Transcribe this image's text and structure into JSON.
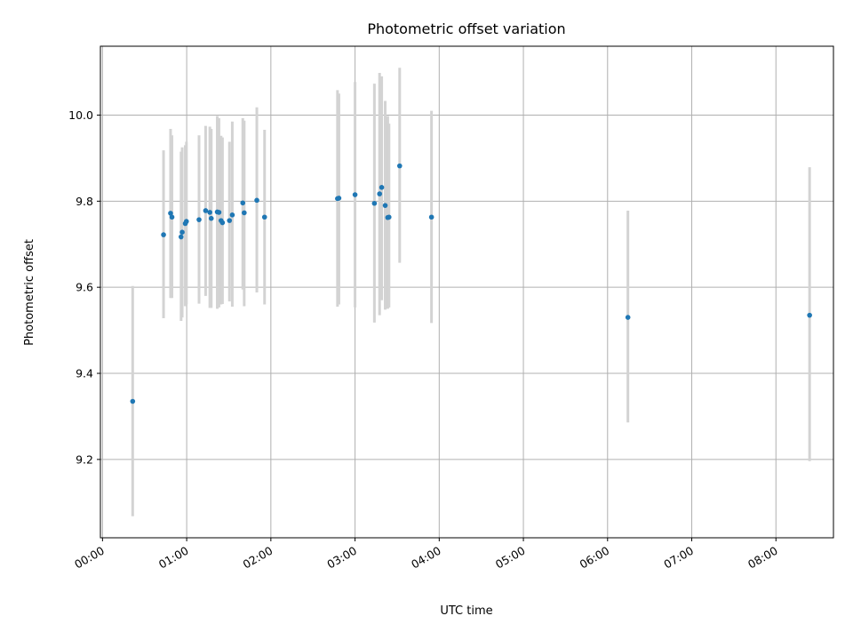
{
  "colors": {
    "point": "#1f77b4",
    "errorbar": "#d3d3d3",
    "grid": "#b0b0b0",
    "axis": "#000000"
  },
  "chart_data": {
    "type": "scatter",
    "title": "Photometric offset variation",
    "xlabel": "UTC time",
    "ylabel": "Photometric offset",
    "grid": true,
    "x_unit": "minutes since 00:00 UTC",
    "xlim": [
      -1.5,
      521
    ],
    "ylim": [
      9.018,
      10.16
    ],
    "xticks": [
      0,
      60,
      120,
      180,
      240,
      300,
      360,
      420,
      480
    ],
    "xtick_labels": [
      "00:00",
      "01:00",
      "02:00",
      "03:00",
      "04:00",
      "05:00",
      "06:00",
      "07:00",
      "08:00"
    ],
    "yticks": [
      9.2,
      9.4,
      9.6,
      9.8,
      10.0
    ],
    "ytick_labels": [
      "9.2",
      "9.4",
      "9.6",
      "9.8",
      "10.0"
    ],
    "series": [
      {
        "points": [
          {
            "x": 21.5,
            "y": 9.335,
            "lo": 9.068,
            "hi": 9.603
          },
          {
            "x": 43.5,
            "y": 9.722,
            "lo": 9.528,
            "hi": 9.918
          },
          {
            "x": 48.5,
            "y": 9.772,
            "lo": 9.575,
            "hi": 9.968
          },
          {
            "x": 49.5,
            "y": 9.763,
            "lo": 9.575,
            "hi": 9.953
          },
          {
            "x": 56.0,
            "y": 9.717,
            "lo": 9.522,
            "hi": 9.915
          },
          {
            "x": 56.8,
            "y": 9.728,
            "lo": 9.53,
            "hi": 9.925
          },
          {
            "x": 59.0,
            "y": 9.748,
            "lo": 9.556,
            "hi": 9.93
          },
          {
            "x": 59.8,
            "y": 9.753,
            "lo": 9.56,
            "hi": 9.938
          },
          {
            "x": 68.8,
            "y": 9.757,
            "lo": 9.562,
            "hi": 9.953
          },
          {
            "x": 73.5,
            "y": 9.778,
            "lo": 9.58,
            "hi": 9.975
          },
          {
            "x": 76.5,
            "y": 9.774,
            "lo": 9.552,
            "hi": 9.973
          },
          {
            "x": 77.5,
            "y": 9.76,
            "lo": 9.552,
            "hi": 9.968
          },
          {
            "x": 81.8,
            "y": 9.775,
            "lo": 9.55,
            "hi": 9.998
          },
          {
            "x": 83.0,
            "y": 9.774,
            "lo": 9.553,
            "hi": 9.993
          },
          {
            "x": 84.5,
            "y": 9.755,
            "lo": 9.56,
            "hi": 9.952
          },
          {
            "x": 85.5,
            "y": 9.75,
            "lo": 9.561,
            "hi": 9.948
          },
          {
            "x": 90.5,
            "y": 9.755,
            "lo": 9.567,
            "hi": 9.938
          },
          {
            "x": 92.5,
            "y": 9.768,
            "lo": 9.555,
            "hi": 9.985
          },
          {
            "x": 100.0,
            "y": 9.796,
            "lo": 9.595,
            "hi": 9.993
          },
          {
            "x": 101.0,
            "y": 9.773,
            "lo": 9.556,
            "hi": 9.987
          },
          {
            "x": 110.0,
            "y": 9.802,
            "lo": 9.588,
            "hi": 10.018
          },
          {
            "x": 115.5,
            "y": 9.763,
            "lo": 9.56,
            "hi": 9.966
          },
          {
            "x": 167.5,
            "y": 9.806,
            "lo": 9.555,
            "hi": 10.058
          },
          {
            "x": 168.5,
            "y": 9.807,
            "lo": 9.56,
            "hi": 10.05
          },
          {
            "x": 180.0,
            "y": 9.815,
            "lo": 9.553,
            "hi": 10.077
          },
          {
            "x": 193.8,
            "y": 9.795,
            "lo": 9.518,
            "hi": 10.073
          },
          {
            "x": 197.5,
            "y": 9.817,
            "lo": 9.535,
            "hi": 10.098
          },
          {
            "x": 199.0,
            "y": 9.832,
            "lo": 9.57,
            "hi": 10.09
          },
          {
            "x": 201.5,
            "y": 9.79,
            "lo": 9.548,
            "hi": 10.033
          },
          {
            "x": 203.3,
            "y": 9.762,
            "lo": 9.55,
            "hi": 9.998
          },
          {
            "x": 204.2,
            "y": 9.763,
            "lo": 9.553,
            "hi": 9.98
          },
          {
            "x": 211.8,
            "y": 9.882,
            "lo": 9.657,
            "hi": 10.11
          },
          {
            "x": 234.5,
            "y": 9.763,
            "lo": 9.517,
            "hi": 10.01
          },
          {
            "x": 374.5,
            "y": 9.53,
            "lo": 9.286,
            "hi": 9.778
          },
          {
            "x": 504.0,
            "y": 9.535,
            "lo": 9.196,
            "hi": 9.879
          }
        ]
      }
    ]
  }
}
